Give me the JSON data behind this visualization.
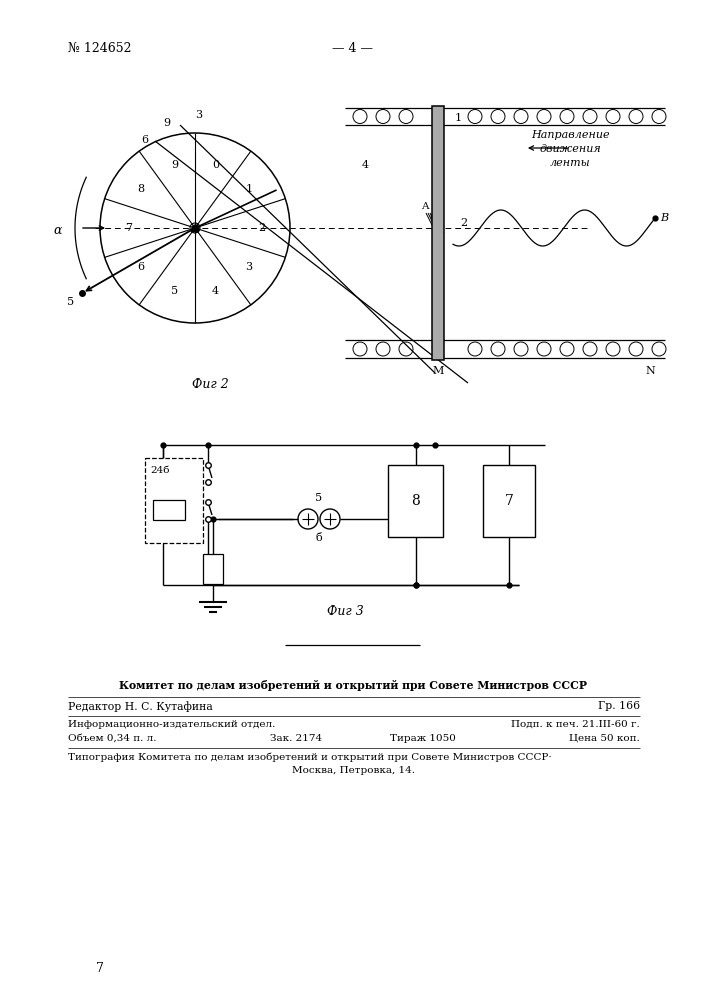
{
  "bg_color": "#ffffff",
  "header_patent": "№ 124652",
  "header_page": "— 4 —",
  "fig2_caption": "Фиг 2",
  "fig3_caption": "Фиг 3",
  "footer_line1": "Комитет по делам изобретений и открытий при Совете Министров СССР",
  "footer_line2_left": "Редактор Н. С. Кутафина",
  "footer_line2_right": "Гр. 166",
  "footer_line3_left": "Информационно-издательский отдел.",
  "footer_line3_right": "Подп. к печ. 21.III-60 г.",
  "footer_line4_left1": "Объем 0,34 п. л.",
  "footer_line4_left2": "Зак. 2174",
  "footer_line4_left3": "Тираж 1050",
  "footer_line4_right": "Цена 50 коп.",
  "footer_line5": "Типография Комитета по делам изобретений и открытий при Совете Министров СССР·",
  "footer_line6": "Москва, Петровка, 14.",
  "page_number": "7",
  "direction_text1": "Направление",
  "direction_text2": "движения",
  "direction_text3": "ленты"
}
